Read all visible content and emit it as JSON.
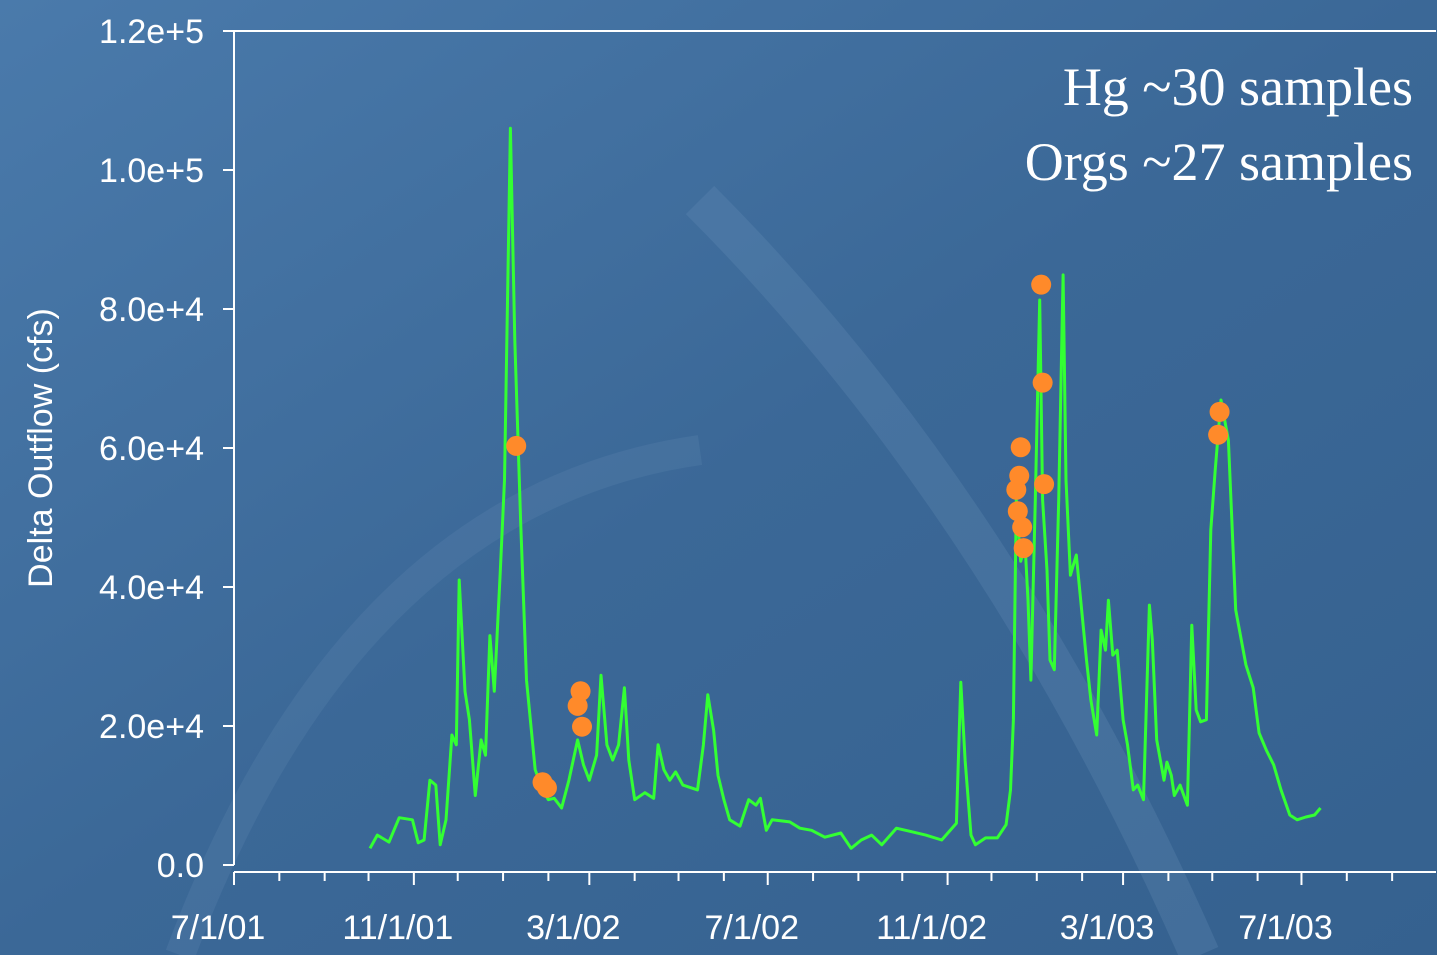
{
  "chart_data": {
    "type": "line",
    "ylabel": "Delta Outflow (cfs)",
    "annotations": [
      "Hg ~30 samples",
      "Orgs ~27 samples"
    ],
    "xlim": [
      "2001-07-01",
      "2003-10-01"
    ],
    "xticks": [
      {
        "value": "2001-07-01",
        "label": "7/1/01"
      },
      {
        "value": "2001-11-01",
        "label": "11/1/01"
      },
      {
        "value": "2002-03-01",
        "label": "3/1/02"
      },
      {
        "value": "2002-07-01",
        "label": "7/1/02"
      },
      {
        "value": "2002-11-01",
        "label": "11/1/02"
      },
      {
        "value": "2003-03-01",
        "label": "3/1/03"
      },
      {
        "value": "2003-07-01",
        "label": "7/1/03"
      }
    ],
    "xminorticks": [
      "2001-08-01",
      "2001-09-01",
      "2001-10-01",
      "2001-12-01",
      "2002-01-01",
      "2002-02-01",
      "2002-04-01",
      "2002-05-01",
      "2002-06-01",
      "2002-08-01",
      "2002-09-01",
      "2002-10-01",
      "2002-12-01",
      "2003-01-01",
      "2003-02-01",
      "2003-04-01",
      "2003-05-01",
      "2003-06-01",
      "2003-08-01",
      "2003-09-01"
    ],
    "ylim": [
      0,
      120000
    ],
    "yticks": [
      {
        "value": 0,
        "label": "0.0"
      },
      {
        "value": 20000,
        "label": "2.0e+4"
      },
      {
        "value": 40000,
        "label": "4.0e+4"
      },
      {
        "value": 60000,
        "label": "6.0e+4"
      },
      {
        "value": 80000,
        "label": "8.0e+4"
      },
      {
        "value": 100000,
        "label": "1.0e+5"
      },
      {
        "value": 120000,
        "label": "1.2e+5"
      }
    ],
    "series": [
      {
        "type": "line",
        "color": "#33ff33",
        "x": [
          "2001-10-02",
          "2001-10-07",
          "2001-10-15",
          "2001-10-22",
          "2001-10-31",
          "2001-11-04",
          "2001-11-08",
          "2001-11-12",
          "2001-11-16",
          "2001-11-19",
          "2001-11-23",
          "2001-11-27",
          "2001-11-30",
          "2001-12-02",
          "2001-12-06",
          "2001-12-09",
          "2001-12-13",
          "2001-12-17",
          "2001-12-20",
          "2001-12-23",
          "2001-12-26",
          "2001-12-30",
          "2002-01-02",
          "2002-01-06",
          "2002-01-09",
          "2002-01-13",
          "2002-01-17",
          "2002-01-23",
          "2002-01-28",
          "2002-02-01",
          "2002-02-05",
          "2002-02-10",
          "2002-02-15",
          "2002-02-21",
          "2002-02-25",
          "2002-03-01",
          "2002-03-06",
          "2002-03-09",
          "2002-03-13",
          "2002-03-17",
          "2002-03-21",
          "2002-03-25",
          "2002-03-28",
          "2002-04-01",
          "2002-04-08",
          "2002-04-14",
          "2002-04-17",
          "2002-04-21",
          "2002-04-25",
          "2002-04-29",
          "2002-05-04",
          "2002-05-14",
          "2002-05-18",
          "2002-05-21",
          "2002-05-25",
          "2002-05-28",
          "2002-06-01",
          "2002-06-05",
          "2002-06-12",
          "2002-06-18",
          "2002-06-23",
          "2002-06-26",
          "2002-06-30",
          "2002-07-04",
          "2002-07-16",
          "2002-07-23",
          "2002-07-31",
          "2002-08-09",
          "2002-08-20",
          "2002-08-27",
          "2002-09-03",
          "2002-09-10",
          "2002-09-17",
          "2002-09-27",
          "2002-10-07",
          "2002-10-17",
          "2002-10-28",
          "2002-11-07",
          "2002-11-10",
          "2002-11-13",
          "2002-11-17",
          "2002-11-20",
          "2002-11-27",
          "2002-12-05",
          "2002-12-11",
          "2002-12-14",
          "2002-12-16",
          "2002-12-18",
          "2002-12-21",
          "2002-12-24",
          "2002-12-26",
          "2002-12-28",
          "2002-12-31",
          "2003-01-03",
          "2003-01-05",
          "2003-01-08",
          "2003-01-10",
          "2003-01-13",
          "2003-01-16",
          "2003-01-19",
          "2003-01-21",
          "2003-01-24",
          "2003-01-28",
          "2003-01-31",
          "2003-02-04",
          "2003-02-07",
          "2003-02-11",
          "2003-02-14",
          "2003-02-17",
          "2003-02-19",
          "2003-02-22",
          "2003-02-25",
          "2003-03-01",
          "2003-03-04",
          "2003-03-08",
          "2003-03-11",
          "2003-03-15",
          "2003-03-19",
          "2003-03-21",
          "2003-03-24",
          "2003-03-29",
          "2003-03-31",
          "2003-04-03",
          "2003-04-05",
          "2003-04-09",
          "2003-04-14",
          "2003-04-17",
          "2003-04-20",
          "2003-04-23",
          "2003-04-27",
          "2003-04-30",
          "2003-05-03",
          "2003-05-07",
          "2003-05-12",
          "2003-05-17",
          "2003-05-24",
          "2003-05-29",
          "2003-06-02",
          "2003-06-07",
          "2003-06-12",
          "2003-06-17",
          "2003-06-23",
          "2003-06-28",
          "2003-07-04",
          "2003-07-10",
          "2003-07-14"
        ],
        "values": [
          2400,
          4300,
          3300,
          6800,
          6500,
          3200,
          3600,
          12200,
          11500,
          2900,
          6500,
          18700,
          17300,
          41000,
          25000,
          20900,
          10000,
          18000,
          15800,
          33000,
          25000,
          41700,
          55400,
          106000,
          75500,
          49600,
          26600,
          13700,
          10800,
          9400,
          9600,
          8200,
          12200,
          18000,
          14400,
          12200,
          15800,
          27300,
          17300,
          15100,
          17300,
          25500,
          15100,
          9400,
          10400,
          9600,
          17300,
          13700,
          12200,
          13400,
          11500,
          10800,
          17300,
          24500,
          19400,
          12900,
          9400,
          6500,
          5600,
          9400,
          8600,
          9600,
          5000,
          6500,
          6200,
          5300,
          5000,
          4000,
          4600,
          2400,
          3600,
          4300,
          2900,
          5300,
          4800,
          4300,
          3600,
          6000,
          26300,
          15100,
          4300,
          2900,
          3900,
          3900,
          5800,
          10800,
          20900,
          52500,
          43700,
          46000,
          38100,
          26600,
          52500,
          81300,
          52500,
          42400,
          29500,
          28100,
          52500,
          84900,
          55400,
          41700,
          44600,
          38100,
          29500,
          23700,
          18700,
          33800,
          30900,
          38100,
          30200,
          30900,
          20900,
          17300,
          10800,
          11500,
          9400,
          37400,
          32400,
          18000,
          12200,
          14800,
          12900,
          10000,
          11500,
          8600,
          34500,
          22300,
          20600,
          20900,
          48200,
          56800,
          66900,
          61100,
          36700,
          28800,
          25500,
          19000,
          16500,
          14400,
          10800,
          7200,
          6500,
          6900,
          7200,
          8200
        ]
      },
      {
        "type": "scatter",
        "color": "#ff8a2a",
        "x": [
          "2002-01-10",
          "2002-01-28",
          "2002-01-31",
          "2002-02-23",
          "2002-02-21",
          "2002-02-24",
          "2002-12-21",
          "2002-12-20",
          "2002-12-18",
          "2002-12-19",
          "2002-12-22",
          "2002-12-23",
          "2003-01-04",
          "2003-01-05",
          "2003-01-06",
          "2003-05-06",
          "2003-05-05"
        ],
        "values": [
          60300,
          11900,
          11100,
          25000,
          22900,
          19900,
          60100,
          56000,
          54000,
          50900,
          48600,
          45600,
          83500,
          69400,
          54800,
          65200,
          61900
        ]
      }
    ]
  }
}
